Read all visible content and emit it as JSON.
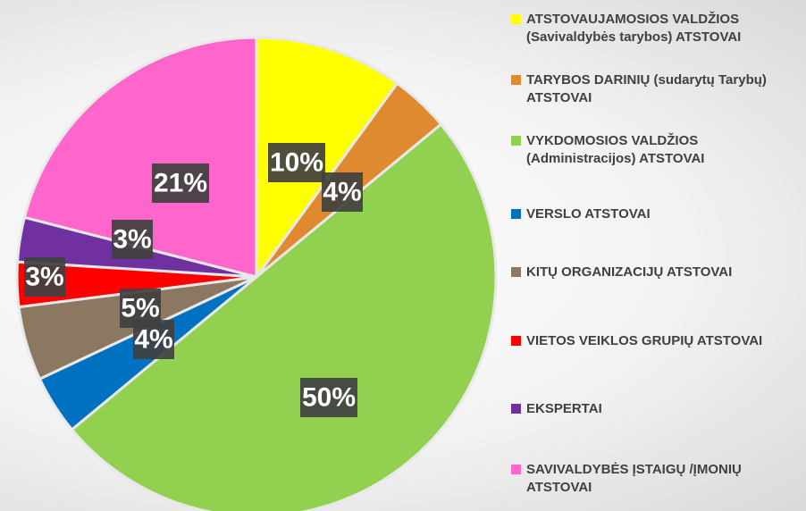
{
  "chart_data": {
    "type": "pie",
    "categories": [
      "ATSTOVAUJAMOSIOS VALDŽIOS (Savivaldybės tarybos) ATSTOVAI",
      "TARYBOS DARINIŲ (sudarytų Tarybų) ATSTOVAI",
      "VYKDOMOSIOS VALDŽIOS (Administracijos) ATSTOVAI",
      "VERSLO ATSTOVAI",
      "KITŲ ORGANIZACIJŲ ATSTOVAI",
      "VIETOS VEIKLOS GRUPIŲ ATSTOVAI",
      "EKSPERTAI",
      "SAVIVALDYBĖS ĮSTAIGŲ /ĮMONIŲ ATSTOVAI"
    ],
    "values": [
      10,
      4,
      50,
      4,
      5,
      3,
      3,
      21
    ],
    "value_labels": [
      "10%",
      "4%",
      "50%",
      "4%",
      "5%",
      "3%",
      "3%",
      "21%"
    ],
    "colors": [
      "#ffff00",
      "#e08a30",
      "#92d050",
      "#0070c0",
      "#8c7760",
      "#ff0000",
      "#7030a0",
      "#ff66cc"
    ],
    "legend": "right"
  }
}
